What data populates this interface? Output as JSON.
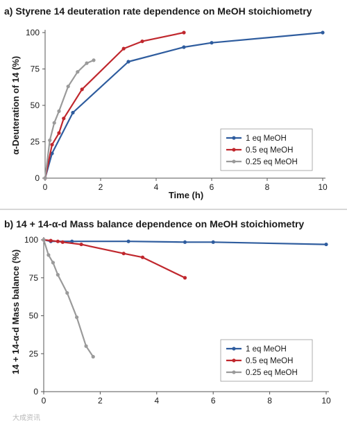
{
  "chart_data": [
    {
      "type": "line",
      "title": "a) Styrene 14 deuteration rate dependence on MeOH stoichiometry",
      "xlabel": "Time (h)",
      "ylabel": "α-Deuteration of 14 (%)",
      "xlim": [
        0,
        10
      ],
      "ylim": [
        0,
        100
      ],
      "xticks": [
        0,
        2,
        4,
        6,
        8,
        10
      ],
      "yticks": [
        0,
        25,
        50,
        75,
        100
      ],
      "grid": false,
      "legend_position": "bottom-right",
      "series": [
        {
          "name": "1 eq MeOH",
          "color": "#2e5c9e",
          "x": [
            0,
            0.25,
            1.0,
            3.0,
            5.0,
            6.0,
            10.0
          ],
          "y": [
            0,
            17,
            45,
            80,
            90,
            93,
            100
          ]
        },
        {
          "name": "0.5 eq MeOH",
          "color": "#c0272d",
          "x": [
            0,
            0.25,
            0.5,
            0.67,
            1.33,
            2.83,
            3.5,
            5.0
          ],
          "y": [
            0,
            23,
            31,
            41,
            61,
            89,
            94,
            100
          ]
        },
        {
          "name": "0.25 eq MeOH",
          "color": "#9a9a9a",
          "x": [
            0,
            0.17,
            0.33,
            0.5,
            0.83,
            1.17,
            1.5,
            1.75
          ],
          "y": [
            0,
            26,
            38,
            46,
            63,
            73,
            79,
            81
          ]
        }
      ]
    },
    {
      "type": "line",
      "title": "b) 14 + 14-α-d Mass balance dependence on MeOH stoichiometry",
      "xlabel": "Time (h)",
      "ylabel": "14 + 14-α-d Mass balance (%)",
      "xlim": [
        0,
        10
      ],
      "ylim": [
        0,
        100
      ],
      "xticks": [
        0,
        2,
        4,
        6,
        8,
        10
      ],
      "yticks": [
        0,
        25,
        50,
        75,
        100
      ],
      "grid": false,
      "legend_position": "bottom-right",
      "series": [
        {
          "name": "1 eq MeOH",
          "color": "#2e5c9e",
          "x": [
            0,
            0.25,
            1.0,
            3.0,
            5.0,
            6.0,
            10.0
          ],
          "y": [
            100,
            99,
            99,
            99,
            98.5,
            98.5,
            97
          ]
        },
        {
          "name": "0.5 eq MeOH",
          "color": "#c0272d",
          "x": [
            0,
            0.25,
            0.5,
            0.67,
            1.33,
            2.83,
            3.5,
            5.0
          ],
          "y": [
            100,
            99.5,
            99,
            98.5,
            97,
            91,
            88.5,
            75
          ]
        },
        {
          "name": "0.25 eq MeOH",
          "color": "#9a9a9a",
          "x": [
            0,
            0.17,
            0.33,
            0.5,
            0.83,
            1.17,
            1.5,
            1.75
          ],
          "y": [
            100,
            90,
            85,
            77,
            65,
            49,
            30,
            23
          ]
        }
      ]
    }
  ],
  "watermark_text": "大成资讯"
}
